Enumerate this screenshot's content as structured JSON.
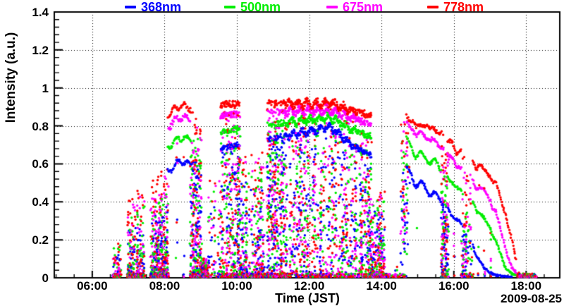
{
  "legend": {
    "items": [
      {
        "label": "368nm",
        "color": "#0000ff"
      },
      {
        "label": "500nm",
        "color": "#00ee00"
      },
      {
        "label": "675nm",
        "color": "#ff00ff"
      },
      {
        "label": "778nm",
        "color": "#ff0000"
      }
    ]
  },
  "axes": {
    "x": {
      "title": "Time (JST)",
      "min_hour": 4.95,
      "max_hour": 18.93,
      "major_tick_hours": [
        6,
        8,
        10,
        12,
        14,
        16,
        18
      ],
      "tick_labels": [
        "06:00",
        "08:00",
        "10:00",
        "12:00",
        "14:00",
        "16:00",
        "18:00"
      ],
      "minor_step_hours": 0.5
    },
    "y": {
      "title": "Intensity (a.u.)",
      "min": 0,
      "max": 1.4,
      "major_ticks": [
        0,
        0.2,
        0.4,
        0.6,
        0.8,
        1,
        1.2,
        1.4
      ],
      "tick_labels": [
        "0",
        "0.2",
        "0.4",
        "0.6",
        "0.8",
        "1",
        "1.2",
        "1.4"
      ],
      "minor_step": 0.04
    },
    "grid": {
      "style": "dotted",
      "color": "#000000"
    }
  },
  "footer": {
    "date_label": "2009-08-25"
  },
  "chart_data": {
    "type": "scatter",
    "title": "",
    "xlabel": "Time (JST)",
    "ylabel": "Intensity (a.u.)",
    "xlim_hours": [
      4.95,
      18.93
    ],
    "ylim": [
      0,
      1.4
    ],
    "marker_radius_px": 1.7,
    "series": [
      {
        "name": "368nm",
        "color": "#0000ff"
      },
      {
        "name": "500nm",
        "color": "#00ee00"
      },
      {
        "name": "675nm",
        "color": "#ff00ff"
      },
      {
        "name": "778nm",
        "color": "#ff0000"
      }
    ],
    "clear_sky_envelope": {
      "hours": [
        6.5,
        7.0,
        7.6,
        8.1,
        8.4,
        8.7,
        9.3,
        9.7,
        10.5,
        11.3,
        12.0,
        12.6,
        13.1,
        13.6,
        14.2,
        14.75,
        15.1,
        15.5,
        15.9,
        16.35,
        16.6,
        16.85,
        17.0,
        17.15,
        17.3,
        17.45,
        17.6,
        17.75,
        17.95,
        18.3
      ],
      "368nm": [
        0.25,
        0.33,
        0.44,
        0.555,
        0.615,
        0.6,
        0.655,
        0.7,
        0.73,
        0.76,
        0.785,
        0.81,
        0.72,
        0.665,
        0.63,
        0.56,
        0.5,
        0.44,
        0.355,
        0.255,
        0.13,
        0.05,
        0.028,
        0.015,
        0.008,
        0.005,
        0.004,
        0.003,
        0.0,
        0.0
      ],
      "500nm": [
        0.33,
        0.42,
        0.55,
        0.685,
        0.74,
        0.73,
        0.76,
        0.79,
        0.81,
        0.83,
        0.845,
        0.86,
        0.8,
        0.765,
        0.745,
        0.72,
        0.66,
        0.615,
        0.525,
        0.445,
        0.38,
        0.305,
        0.265,
        0.2,
        0.12,
        0.05,
        0.022,
        0.012,
        0.005,
        0.0
      ],
      "675nm": [
        0.4,
        0.5,
        0.64,
        0.8,
        0.845,
        0.84,
        0.855,
        0.875,
        0.88,
        0.89,
        0.895,
        0.9,
        0.86,
        0.83,
        0.82,
        0.82,
        0.78,
        0.725,
        0.65,
        0.565,
        0.5,
        0.455,
        0.42,
        0.35,
        0.25,
        0.14,
        0.055,
        0.02,
        0.005,
        0.0
      ],
      "778nm": [
        0.45,
        0.55,
        0.7,
        0.86,
        0.905,
        0.9,
        0.915,
        0.93,
        0.93,
        0.935,
        0.93,
        0.935,
        0.9,
        0.875,
        0.87,
        0.86,
        0.83,
        0.795,
        0.72,
        0.665,
        0.615,
        0.565,
        0.545,
        0.5,
        0.42,
        0.32,
        0.2,
        0.07,
        0.01,
        0.0
      ]
    },
    "segments": [
      {
        "t0": 6.58,
        "t1": 6.82,
        "mode": "burst",
        "density": 0.4,
        "fmax": 0.45,
        "pow": 2.0,
        "base": 0.35
      },
      {
        "t0": 6.98,
        "t1": 7.45,
        "mode": "burst",
        "density": 0.55,
        "fmax": 0.75,
        "pow": 2.4,
        "base": 0.55
      },
      {
        "t0": 7.62,
        "t1": 8.1,
        "mode": "burst",
        "density": 0.85,
        "fmax": 0.7,
        "pow": 2.8,
        "base": 0.85
      },
      {
        "t0": 8.1,
        "t1": 8.72,
        "mode": "clear",
        "jitter": 0.01,
        "below": 0.1,
        "wig": [
          0.022,
          3.5
        ]
      },
      {
        "t0": 8.72,
        "t1": 9.02,
        "mode": "burst",
        "density": 0.75,
        "fmax": 1.0,
        "pow": 1.6,
        "base": 0.6
      },
      {
        "t0": 9.02,
        "t1": 9.18,
        "mode": "burst",
        "density": 0.8,
        "fmax": 0.12,
        "pow": 2.0,
        "base": 0.9
      },
      {
        "t0": 9.18,
        "t1": 9.55,
        "mode": "burst",
        "density": 0.18,
        "fmax": 0.6,
        "pow": 2.0,
        "base": 0.15
      },
      {
        "t0": 9.55,
        "t1": 10.08,
        "mode": "band",
        "topd": 0.75,
        "density": 0.45,
        "fmax": 0.97,
        "pow": 1.2,
        "base": 0.35
      },
      {
        "t0": 10.08,
        "t1": 10.85,
        "mode": "burst",
        "density": 0.38,
        "fmax": 0.72,
        "pow": 1.7,
        "base": 0.35
      },
      {
        "t0": 10.85,
        "t1": 11.35,
        "mode": "band",
        "topd": 0.55,
        "density": 0.55,
        "fmax": 0.97,
        "pow": 1.1,
        "base": 0.3
      },
      {
        "t0": 11.35,
        "t1": 13.28,
        "mode": "band",
        "topd": 0.92,
        "density": 0.3,
        "fmax": 0.92,
        "pow": 1.3,
        "base": 0.22,
        "wig": [
          0.018,
          4.0
        ]
      },
      {
        "t0": 13.28,
        "t1": 13.72,
        "mode": "band",
        "topd": 0.85,
        "density": 0.35,
        "fmax": 0.9,
        "pow": 1.4,
        "base": 0.3
      },
      {
        "t0": 13.72,
        "t1": 14.15,
        "mode": "burst",
        "density": 0.5,
        "fmax": 0.55,
        "pow": 2.4,
        "base": 0.7
      },
      {
        "t0": 14.15,
        "t1": 14.5,
        "mode": "burst",
        "density": 0.06,
        "fmax": 0.12,
        "pow": 2.0,
        "base": 0.12
      },
      {
        "t0": 14.5,
        "t1": 14.72,
        "mode": "burst",
        "density": 0.4,
        "fmax": 1.0,
        "pow": 0.7,
        "base": 0.15
      },
      {
        "t0": 14.7,
        "t1": 15.66,
        "mode": "clear",
        "jitter": 0.01,
        "below": 0.05,
        "wig": [
          0.028,
          2.6
        ],
        "dips": [
          [
            14.97,
            0.1,
            0.075
          ],
          [
            15.35,
            0.09,
            0.05
          ]
        ]
      },
      {
        "t0": 15.66,
        "t1": 15.84,
        "mode": "burst",
        "density": 0.6,
        "fmax": 1.0,
        "pow": 1.2,
        "base": 0.45
      },
      {
        "t0": 15.84,
        "t1": 16.22,
        "mode": "clear",
        "jitter": 0.01,
        "below": 0.06,
        "wig": [
          0.024,
          3.0
        ],
        "dips": [
          [
            16.05,
            0.09,
            0.06
          ]
        ]
      },
      {
        "t0": 16.22,
        "t1": 16.52,
        "mode": "burst",
        "density": 0.45,
        "fmax": 1.0,
        "pow": 1.1,
        "base": 0.35
      },
      {
        "t0": 16.52,
        "t1": 17.72,
        "mode": "clear",
        "jitter": 0.009,
        "below": 0.05,
        "wig": [
          0.016,
          2.5
        ],
        "dips": [
          [
            16.62,
            0.06,
            0.05
          ],
          [
            17.07,
            0.05,
            0.04
          ]
        ]
      },
      {
        "t0": 17.78,
        "t1": 18.28,
        "mode": "burst",
        "density": 0.4,
        "fmax": 0.5,
        "pow": 1.5,
        "base": 0.6
      }
    ]
  }
}
